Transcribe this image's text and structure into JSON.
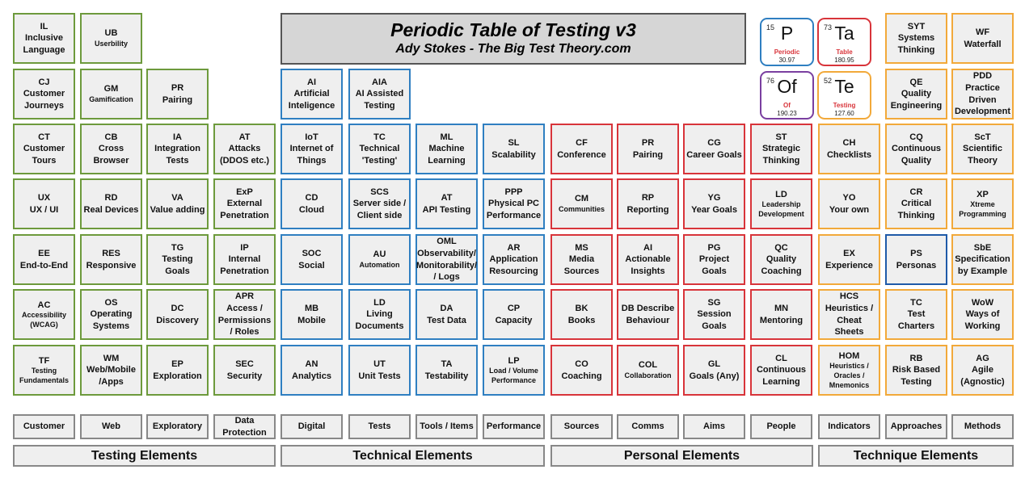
{
  "title": {
    "line1": "Periodic Table of Testing v3",
    "line2": "Ady Stokes - The Big Test Theory.com"
  },
  "legend": [
    {
      "num": "15",
      "sym": "P",
      "name": "Periodic",
      "mass": "30.97",
      "color": "#2f7fc1"
    },
    {
      "num": "73",
      "sym": "Ta",
      "name": "Table",
      "mass": "180.95",
      "color": "#d8343a"
    },
    {
      "num": "76",
      "sym": "Of",
      "name": "Of",
      "mass": "190.23",
      "color": "#7a3fa0"
    },
    {
      "num": "52",
      "sym": "Te",
      "name": "Testing",
      "mass": "127.60",
      "color": "#f2a93a"
    }
  ],
  "colors": {
    "testing": "#6d9a3c",
    "technical": "#2f7fc1",
    "personal": "#d8343a",
    "technique": "#f2a93a"
  },
  "cells": [
    {
      "sym": "IL",
      "name": "Inclusive Language"
    },
    {
      "sym": "UB",
      "name": "Userbility",
      "small": true
    },
    {
      "sym": "SYT",
      "name": "Systems Thinking"
    },
    {
      "sym": "WF",
      "name": "Waterfall"
    },
    {
      "sym": "CJ",
      "name": "Customer Journeys"
    },
    {
      "sym": "GM",
      "name": "Gamification",
      "small": true
    },
    {
      "sym": "PR",
      "name": "Pairing"
    },
    {
      "sym": "AI",
      "name": "Artificial Inteligence"
    },
    {
      "sym": "AIA",
      "name": "AI Assisted Testing"
    },
    {
      "sym": "QE",
      "name": "Quality Engineering"
    },
    {
      "sym": "PDD",
      "name": "Practice Driven Development"
    },
    {
      "sym": "CT",
      "name": "Customer Tours"
    },
    {
      "sym": "CB",
      "name": "Cross Browser"
    },
    {
      "sym": "IA",
      "name": "Integration Tests"
    },
    {
      "sym": "AT",
      "name": "Attacks (DDOS etc.)"
    },
    {
      "sym": "IoT",
      "name": "Internet of Things"
    },
    {
      "sym": "TC",
      "name": "Technical 'Testing'"
    },
    {
      "sym": "ML",
      "name": "Machine Learning"
    },
    {
      "sym": "SL",
      "name": "Scalability"
    },
    {
      "sym": "CF",
      "name": "Conference"
    },
    {
      "sym": "PR",
      "name": "Pairing"
    },
    {
      "sym": "CG",
      "name": "Career Goals"
    },
    {
      "sym": "ST",
      "name": "Strategic Thinking"
    },
    {
      "sym": "CH",
      "name": "Checklists"
    },
    {
      "sym": "CQ",
      "name": "Continuous Quality"
    },
    {
      "sym": "ScT",
      "name": "Scientific Theory"
    },
    {
      "sym": "UX",
      "name": "UX / UI"
    },
    {
      "sym": "RD",
      "name": "Real Devices"
    },
    {
      "sym": "VA",
      "name": "Value adding"
    },
    {
      "sym": "ExP",
      "name": "External Penetration"
    },
    {
      "sym": "CD",
      "name": "Cloud"
    },
    {
      "sym": "SCS",
      "name": "Server side / Client side"
    },
    {
      "sym": "AT",
      "name": "API Testing"
    },
    {
      "sym": "PPP",
      "name": "Physical PC Performance"
    },
    {
      "sym": "CM",
      "name": "Communities",
      "small": true
    },
    {
      "sym": "RP",
      "name": "Reporting"
    },
    {
      "sym": "YG",
      "name": "Year Goals"
    },
    {
      "sym": "LD",
      "name": "Leadership Development",
      "small": true
    },
    {
      "sym": "YO",
      "name": "Your own"
    },
    {
      "sym": "CR",
      "name": "Critical Thinking"
    },
    {
      "sym": "XP",
      "name": "Xtreme Programming",
      "small": true
    },
    {
      "sym": "EE",
      "name": "End-to-End"
    },
    {
      "sym": "RES",
      "name": "Responsive"
    },
    {
      "sym": "TG",
      "name": "Testing Goals"
    },
    {
      "sym": "IP",
      "name": "Internal Penetration"
    },
    {
      "sym": "SOC",
      "name": "Social"
    },
    {
      "sym": "AU",
      "name": "Automation",
      "small": true
    },
    {
      "sym": "OML",
      "name": "Observability/ Monitorability/ / Logs"
    },
    {
      "sym": "AR",
      "name": "Application Resourcing"
    },
    {
      "sym": "MS",
      "name": "Media Sources"
    },
    {
      "sym": "AI",
      "name": "Actionable Insights"
    },
    {
      "sym": "PG",
      "name": "Project Goals"
    },
    {
      "sym": "QC",
      "name": "Quality Coaching"
    },
    {
      "sym": "EX",
      "name": "Experience"
    },
    {
      "sym": "PS",
      "name": "Personas"
    },
    {
      "sym": "SbE",
      "name": "Specification by Example"
    },
    {
      "sym": "AC",
      "name": "Accessibility (WCAG)",
      "small": true
    },
    {
      "sym": "OS",
      "name": "Operating Systems"
    },
    {
      "sym": "DC",
      "name": "Discovery"
    },
    {
      "sym": "APR",
      "name": "Access / Permissions / Roles"
    },
    {
      "sym": "MB",
      "name": "Mobile"
    },
    {
      "sym": "LD",
      "name": "Living Documents"
    },
    {
      "sym": "DA",
      "name": "Test Data"
    },
    {
      "sym": "CP",
      "name": "Capacity"
    },
    {
      "sym": "BK",
      "name": "Books"
    },
    {
      "sym": "DB Describe",
      "name": "Behaviour"
    },
    {
      "sym": "SG",
      "name": "Session Goals"
    },
    {
      "sym": "MN",
      "name": "Mentoring"
    },
    {
      "sym": "HCS",
      "name": "Heuristics / Cheat Sheets"
    },
    {
      "sym": "TC",
      "name": "Test Charters"
    },
    {
      "sym": "WoW",
      "name": "Ways of Working"
    },
    {
      "sym": "TF",
      "name": "Testing Fundamentals",
      "small": true
    },
    {
      "sym": "WM",
      "name": "Web/Mobile /Apps"
    },
    {
      "sym": "EP",
      "name": "Exploration"
    },
    {
      "sym": "SEC",
      "name": "Security"
    },
    {
      "sym": "AN",
      "name": "Analytics"
    },
    {
      "sym": "UT",
      "name": "Unit Tests"
    },
    {
      "sym": "TA",
      "name": "Testability"
    },
    {
      "sym": "LP",
      "name": "Load / Volume Performance",
      "small": true
    },
    {
      "sym": "CO",
      "name": "Coaching"
    },
    {
      "sym": "COL",
      "name": "Collaboration",
      "small": true
    },
    {
      "sym": "GL",
      "name": "Goals (Any)"
    },
    {
      "sym": "CL",
      "name": "Continuous Learning"
    },
    {
      "sym": "HOM",
      "name": "Heuristics / Oracles / Mnemonics",
      "small": true
    },
    {
      "sym": "RB",
      "name": "Risk Based Testing"
    },
    {
      "sym": "AG",
      "name": "Agile (Agnostic)"
    }
  ],
  "categories": [
    "Customer",
    "Web",
    "Exploratory",
    "Data Protection",
    "Digital",
    "Tests",
    "Tools / Items",
    "Performance",
    "Sources",
    "Comms",
    "Aims",
    "People",
    "Indicators",
    "Approaches",
    "Methods"
  ],
  "sections": [
    "Testing Elements",
    "Technical Elements",
    "Personal Elements",
    "Technique Elements"
  ]
}
